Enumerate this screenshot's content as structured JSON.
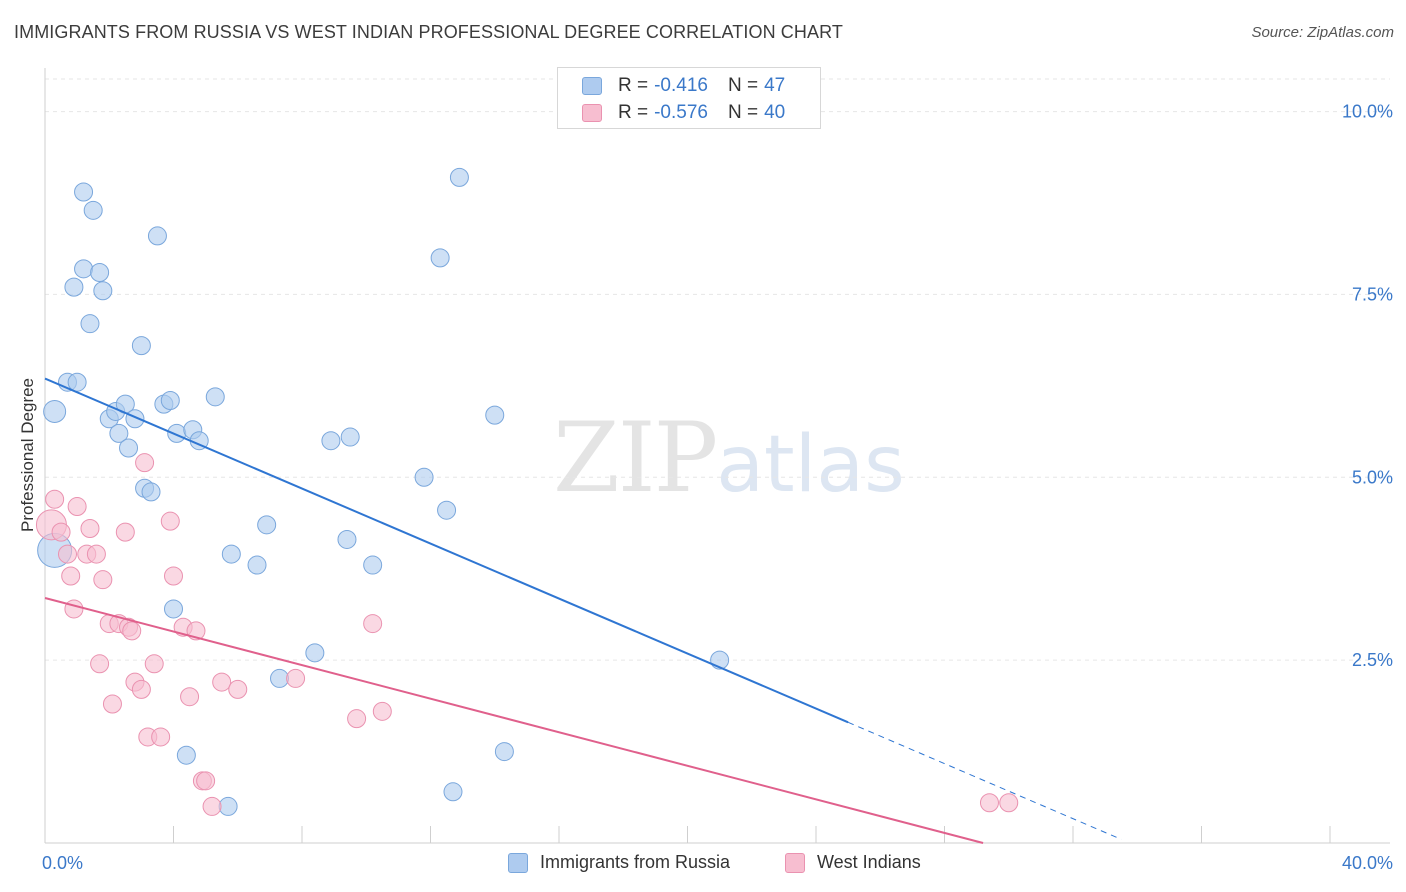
{
  "header": {
    "title": "IMMIGRANTS FROM RUSSIA VS WEST INDIAN PROFESSIONAL DEGREE CORRELATION CHART",
    "source": "Source: ZipAtlas.com"
  },
  "watermark": {
    "zip": "ZIP",
    "atlas": "atlas"
  },
  "legend": {
    "series1": {
      "r_label": "R =",
      "r_value": "-0.416",
      "n_label": "N =",
      "n_value": "47"
    },
    "series2": {
      "r_label": "R =",
      "r_value": "-0.576",
      "n_label": "N =",
      "n_value": "40"
    }
  },
  "colors": {
    "blue_fill": "#aecbef",
    "blue_stroke": "#7aa7dc",
    "blue_line": "#2f76d2",
    "pink_fill": "#f7bed0",
    "pink_stroke": "#ea92b0",
    "pink_line": "#e0608c",
    "axis_text": "#3a78c9"
  },
  "chart_data": {
    "type": "scatter",
    "title": "IMMIGRANTS FROM RUSSIA VS WEST INDIAN PROFESSIONAL DEGREE CORRELATION CHART",
    "xlabel": "",
    "ylabel": "Professional Degree",
    "xlim": [
      0,
      40
    ],
    "ylim": [
      0,
      10.5
    ],
    "x_tick_labels": [
      "0.0%",
      "40.0%"
    ],
    "y_ticks": [
      2.5,
      5.0,
      7.5,
      10.0
    ],
    "y_tick_labels": [
      "2.5%",
      "5.0%",
      "7.5%",
      "10.0%"
    ],
    "grid": true,
    "legend_position": "top-center",
    "series": [
      {
        "name": "Immigrants from Russia",
        "r": -0.416,
        "n": 47,
        "points": [
          [
            0.3,
            4.0
          ],
          [
            0.3,
            5.9
          ],
          [
            0.7,
            6.3
          ],
          [
            0.9,
            7.6
          ],
          [
            1.0,
            6.3
          ],
          [
            1.2,
            8.9
          ],
          [
            1.2,
            7.85
          ],
          [
            1.4,
            7.1
          ],
          [
            1.5,
            8.65
          ],
          [
            1.7,
            7.8
          ],
          [
            1.8,
            7.55
          ],
          [
            2.0,
            5.8
          ],
          [
            2.2,
            5.9
          ],
          [
            2.3,
            5.6
          ],
          [
            2.5,
            6.0
          ],
          [
            2.6,
            5.4
          ],
          [
            2.8,
            5.8
          ],
          [
            3.0,
            6.8
          ],
          [
            3.1,
            4.85
          ],
          [
            3.3,
            4.8
          ],
          [
            3.5,
            8.3
          ],
          [
            3.7,
            6.0
          ],
          [
            3.9,
            6.05
          ],
          [
            4.0,
            3.2
          ],
          [
            4.1,
            5.6
          ],
          [
            4.4,
            1.2
          ],
          [
            4.6,
            5.65
          ],
          [
            4.8,
            5.5
          ],
          [
            5.3,
            6.1
          ],
          [
            5.7,
            0.5
          ],
          [
            5.8,
            3.95
          ],
          [
            6.6,
            3.8
          ],
          [
            6.9,
            4.35
          ],
          [
            7.3,
            2.25
          ],
          [
            8.4,
            2.6
          ],
          [
            8.9,
            5.5
          ],
          [
            9.4,
            4.15
          ],
          [
            9.5,
            5.55
          ],
          [
            10.2,
            3.8
          ],
          [
            11.8,
            5.0
          ],
          [
            12.3,
            8.0
          ],
          [
            12.5,
            4.55
          ],
          [
            12.7,
            0.7
          ],
          [
            12.9,
            9.1
          ],
          [
            14.0,
            5.85
          ],
          [
            14.3,
            1.25
          ],
          [
            21.0,
            2.5
          ]
        ],
        "trend": {
          "x_start": 0,
          "y_start": 6.35,
          "x_solid_end": 25,
          "y_solid_end": 1.65,
          "x_dashed_end": 33.5,
          "y_dashed_end": 0.05
        }
      },
      {
        "name": "West Indians",
        "r": -0.576,
        "n": 40,
        "points": [
          [
            0.2,
            4.35
          ],
          [
            0.3,
            4.7
          ],
          [
            0.5,
            4.25
          ],
          [
            0.7,
            3.95
          ],
          [
            0.8,
            3.65
          ],
          [
            0.9,
            3.2
          ],
          [
            1.0,
            4.6
          ],
          [
            1.3,
            3.95
          ],
          [
            1.4,
            4.3
          ],
          [
            1.6,
            3.95
          ],
          [
            1.7,
            2.45
          ],
          [
            1.8,
            3.6
          ],
          [
            2.0,
            3.0
          ],
          [
            2.1,
            1.9
          ],
          [
            2.3,
            3.0
          ],
          [
            2.5,
            4.25
          ],
          [
            2.6,
            2.95
          ],
          [
            2.7,
            2.9
          ],
          [
            2.8,
            2.2
          ],
          [
            3.0,
            2.1
          ],
          [
            3.1,
            5.2
          ],
          [
            3.2,
            1.45
          ],
          [
            3.4,
            2.45
          ],
          [
            3.6,
            1.45
          ],
          [
            3.9,
            4.4
          ],
          [
            4.0,
            3.65
          ],
          [
            4.3,
            2.95
          ],
          [
            4.5,
            2.0
          ],
          [
            4.7,
            2.9
          ],
          [
            4.9,
            0.85
          ],
          [
            5.0,
            0.85
          ],
          [
            5.2,
            0.5
          ],
          [
            5.5,
            2.2
          ],
          [
            6.0,
            2.1
          ],
          [
            7.8,
            2.25
          ],
          [
            9.7,
            1.7
          ],
          [
            10.2,
            3.0
          ],
          [
            10.5,
            1.8
          ],
          [
            29.4,
            0.55
          ],
          [
            30.0,
            0.55
          ]
        ],
        "trend": {
          "x_start": 0,
          "y_start": 3.35,
          "x_solid_end": 29.2,
          "y_solid_end": 0.0
        }
      }
    ]
  }
}
